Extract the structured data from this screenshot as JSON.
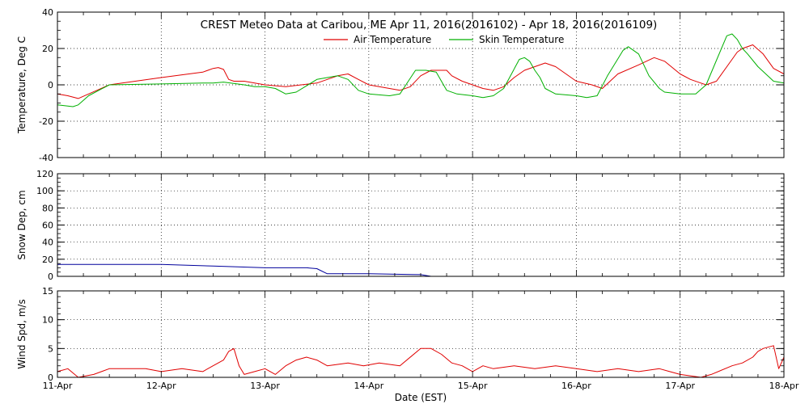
{
  "title": "CREST Meteo Data at Caribou, ME   Apr 11, 2016(2016102) - Apr 18, 2016(2016109)",
  "xlabel": "Date (EST)",
  "x_ticks": [
    "11-Apr",
    "12-Apr",
    "13-Apr",
    "14-Apr",
    "15-Apr",
    "16-Apr",
    "17-Apr",
    "18-Apr"
  ],
  "colors": {
    "air": "#e00000",
    "skin": "#00b000",
    "snow": "#00009c",
    "wind": "#e00000"
  },
  "chart_data": [
    {
      "type": "line",
      "ylabel": "Temperature, Deg C",
      "ylim": [
        -40,
        40
      ],
      "yticks": [
        -40,
        -20,
        0,
        20,
        40
      ],
      "xlim": [
        0,
        7
      ],
      "x_unit": "days since 11-Apr 00:00 EST",
      "grid": true,
      "legend": "top-center",
      "series": [
        {
          "name": "Air Temperature",
          "color": "#e00000",
          "x": [
            0,
            0.1,
            0.2,
            0.3,
            0.5,
            1.0,
            1.4,
            1.45,
            1.5,
            1.55,
            1.6,
            1.65,
            1.7,
            1.75,
            1.8,
            2.0,
            2.2,
            2.5,
            2.6,
            2.7,
            2.8,
            2.9,
            3.0,
            3.2,
            3.3,
            3.4,
            3.5,
            3.6,
            3.7,
            3.75,
            3.8,
            3.9,
            4.0,
            4.1,
            4.2,
            4.3,
            4.4,
            4.5,
            4.6,
            4.7,
            4.8,
            5.0,
            5.15,
            5.25,
            5.4,
            5.6,
            5.75,
            5.85,
            6.0,
            6.1,
            6.2,
            6.25,
            6.35,
            6.5,
            6.55,
            6.6,
            6.7,
            6.8,
            6.9,
            7.0
          ],
          "values": [
            -5,
            -6,
            -7.5,
            -5,
            0,
            4,
            7,
            8,
            9,
            9.5,
            8.5,
            3,
            2,
            2,
            2,
            0,
            -1,
            1,
            3,
            5,
            6,
            3,
            0,
            -2,
            -3,
            -1,
            5,
            8,
            8,
            8,
            5,
            2,
            0,
            -2,
            -3,
            -1,
            4,
            8,
            10,
            12,
            10,
            2,
            0,
            -2,
            6,
            11,
            15,
            13,
            6,
            3,
            1,
            0,
            2,
            14,
            18,
            20,
            22,
            17,
            9,
            6
          ]
        },
        {
          "name": "Skin Temperature",
          "color": "#00b000",
          "x": [
            0,
            0.15,
            0.2,
            0.3,
            0.5,
            1.0,
            1.4,
            1.5,
            1.6,
            1.8,
            1.9,
            2.0,
            2.1,
            2.2,
            2.3,
            2.5,
            2.6,
            2.7,
            2.8,
            2.9,
            3.0,
            3.2,
            3.3,
            3.45,
            3.55,
            3.65,
            3.75,
            3.85,
            4.0,
            4.1,
            4.2,
            4.3,
            4.45,
            4.5,
            4.55,
            4.6,
            4.65,
            4.7,
            4.8,
            5.0,
            5.1,
            5.2,
            5.3,
            5.45,
            5.5,
            5.6,
            5.7,
            5.8,
            5.85,
            6.0,
            6.15,
            6.25,
            6.45,
            6.5,
            6.55,
            6.6,
            6.65,
            6.75,
            6.9,
            7.0
          ],
          "values": [
            -11,
            -12,
            -11,
            -6,
            0,
            0.5,
            1,
            1,
            1.5,
            0,
            -1,
            -1,
            -2,
            -5,
            -4,
            3,
            4,
            5,
            3,
            -3,
            -5,
            -6,
            -5,
            8,
            8,
            7,
            -3,
            -5,
            -6,
            -7,
            -6,
            -2,
            14,
            15,
            13,
            8,
            4,
            -2,
            -5,
            -6,
            -7,
            -6,
            5,
            19,
            21,
            17,
            5,
            -2,
            -4,
            -5,
            -5,
            0,
            27,
            28,
            25,
            20,
            17,
            10,
            2,
            1
          ]
        }
      ]
    },
    {
      "type": "line",
      "ylabel": "Snow Dep, cm",
      "ylim": [
        0,
        120
      ],
      "yticks": [
        0,
        20,
        40,
        60,
        80,
        100,
        120
      ],
      "xlim": [
        0,
        7
      ],
      "x_unit": "days since 11-Apr 00:00 EST",
      "grid": true,
      "series": [
        {
          "name": "Snow Depth",
          "color": "#00009c",
          "x": [
            0,
            0.5,
            1.0,
            1.5,
            2.0,
            2.2,
            2.4,
            2.5,
            2.6,
            3.0,
            3.5,
            3.6,
            3.7,
            4.0,
            4.5,
            5.0,
            5.5,
            6.0,
            6.5,
            7.0
          ],
          "values": [
            14,
            14,
            14,
            12,
            10,
            10,
            10,
            9,
            3,
            3,
            2,
            0,
            0,
            0,
            0,
            0,
            0,
            0,
            0,
            0
          ]
        }
      ]
    },
    {
      "type": "line",
      "ylabel": "Wind Spd, m/s",
      "ylim": [
        0,
        15
      ],
      "yticks": [
        0,
        5,
        10,
        15
      ],
      "xlim": [
        0,
        7
      ],
      "x_unit": "days since 11-Apr 00:00 EST",
      "grid": true,
      "series": [
        {
          "name": "Wind Speed",
          "color": "#e00000",
          "x": [
            0,
            0.1,
            0.2,
            0.35,
            0.5,
            0.7,
            0.85,
            1.0,
            1.2,
            1.4,
            1.5,
            1.6,
            1.65,
            1.7,
            1.75,
            1.8,
            1.9,
            2.0,
            2.1,
            2.2,
            2.3,
            2.4,
            2.5,
            2.6,
            2.8,
            2.95,
            3.1,
            3.3,
            3.5,
            3.6,
            3.7,
            3.8,
            3.9,
            4.0,
            4.1,
            4.2,
            4.4,
            4.6,
            4.8,
            5.0,
            5.2,
            5.4,
            5.6,
            5.8,
            5.9,
            6.0,
            6.2,
            6.3,
            6.5,
            6.6,
            6.7,
            6.75,
            6.8,
            6.9,
            6.95,
            7.0
          ],
          "values": [
            1,
            1.5,
            0,
            0.5,
            1.5,
            1.5,
            1.5,
            1,
            1.5,
            1,
            2,
            3,
            4.5,
            5,
            2,
            0.5,
            1,
            1.5,
            0.5,
            2,
            3,
            3.5,
            3,
            2,
            2.5,
            2,
            2.5,
            2,
            5,
            5,
            4,
            2.5,
            2,
            1,
            2,
            1.5,
            2,
            1.5,
            2,
            1.5,
            1,
            1.5,
            1,
            1.5,
            1,
            0.5,
            0,
            0.5,
            2,
            2.5,
            3.5,
            4.5,
            5,
            5.5,
            1.5,
            3.5
          ]
        }
      ]
    }
  ]
}
